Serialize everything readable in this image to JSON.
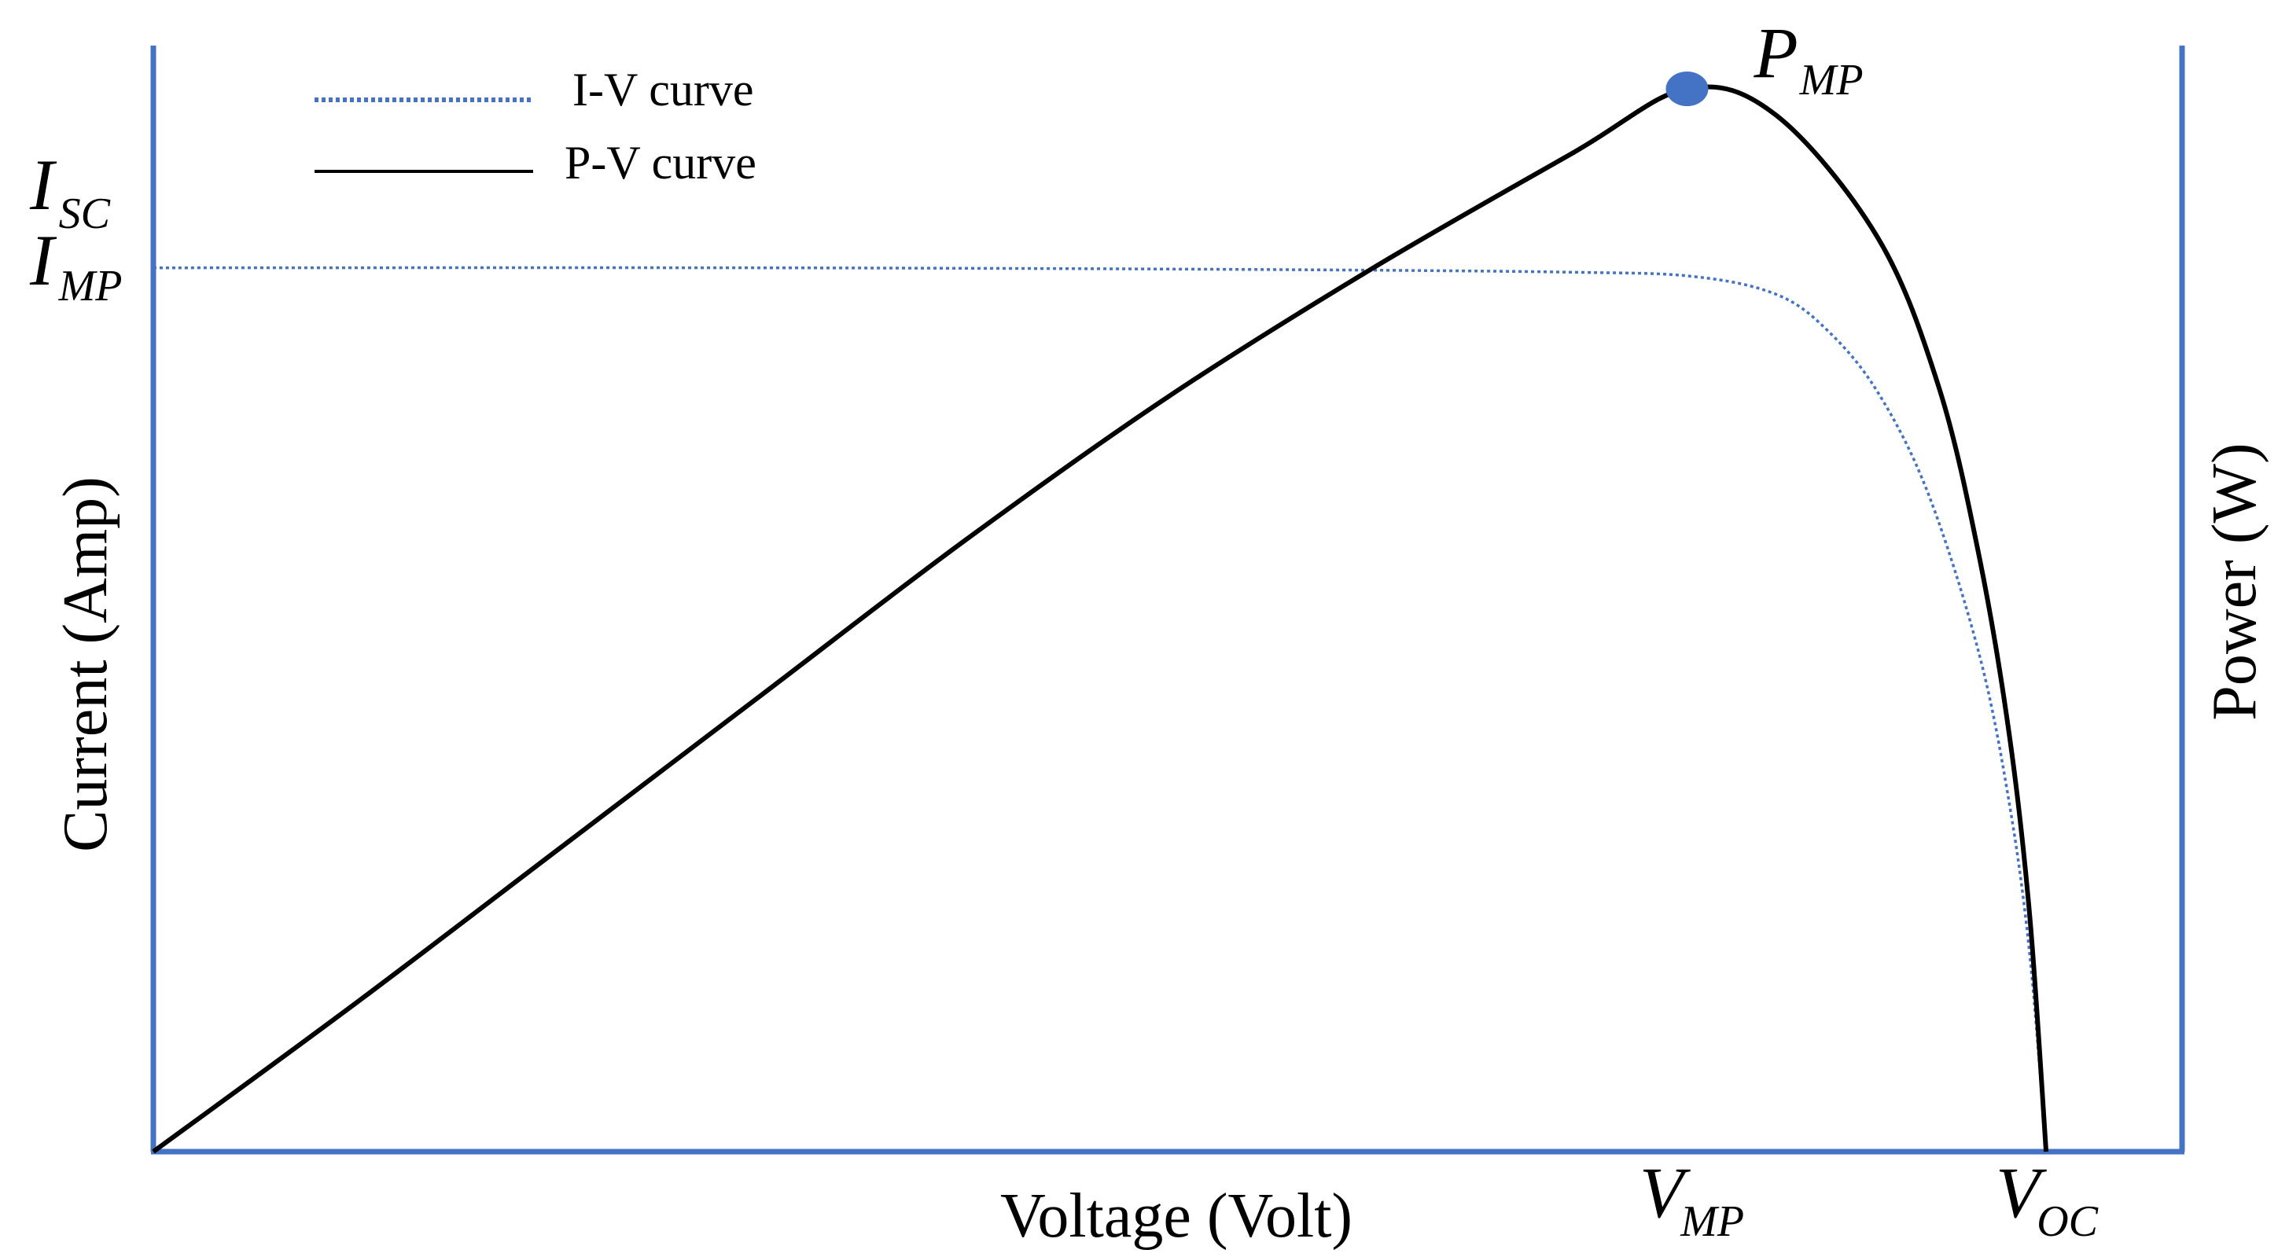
{
  "chart_data": {
    "type": "line",
    "title": "",
    "xlabel": "Voltage (Volt)",
    "ylabel_left": "Current (Amp)",
    "ylabel_right": "Power (W)",
    "grid": false,
    "legend_position": "top-left",
    "legend": [
      {
        "label": "I-V curve",
        "style": "dotted",
        "color": "#4472C4"
      },
      {
        "label": "P-V curve",
        "style": "solid",
        "color": "#000000"
      }
    ],
    "x_range": [
      0,
      1
    ],
    "current_range": [
      0,
      1
    ],
    "power_range": [
      0,
      1
    ],
    "series": [
      {
        "name": "I-V curve",
        "axis": "left",
        "x": [
          0,
          0.3,
          0.55,
          0.7,
          0.76,
          0.8,
          0.825,
          0.85,
          0.875,
          0.9,
          0.915,
          0.925,
          0.933
        ],
        "y": [
          0.995,
          0.995,
          0.993,
          0.99,
          0.985,
          0.965,
          0.925,
          0.855,
          0.74,
          0.56,
          0.39,
          0.22,
          0.0
        ]
      },
      {
        "name": "P-V curve",
        "axis": "right",
        "x": [
          0,
          0.1,
          0.2,
          0.3,
          0.4,
          0.5,
          0.6,
          0.7,
          0.756,
          0.8,
          0.85,
          0.88,
          0.9,
          0.915,
          0.925,
          0.933
        ],
        "y": [
          0.0,
          0.14,
          0.285,
          0.43,
          0.575,
          0.71,
          0.83,
          0.94,
          1.0,
          0.975,
          0.86,
          0.72,
          0.56,
          0.39,
          0.22,
          0.0
        ]
      }
    ],
    "marker": {
      "label_main": "P",
      "label_sub": "MP",
      "x": 0.756,
      "y": 1.0,
      "axis": "right",
      "color": "#4472C4"
    },
    "y_annotations": [
      {
        "label_main": "I",
        "label_sub": "SC",
        "value": 1.0
      },
      {
        "label_main": "I",
        "label_sub": "MP",
        "value": 0.99
      }
    ],
    "x_annotations": [
      {
        "label_main": "V",
        "label_sub": "MP",
        "value": 0.756
      },
      {
        "label_main": "V",
        "label_sub": "OC",
        "value": 0.933
      }
    ],
    "colors": {
      "axis": "#4472C4",
      "iv": "#4472C4",
      "pv": "#000000"
    }
  }
}
